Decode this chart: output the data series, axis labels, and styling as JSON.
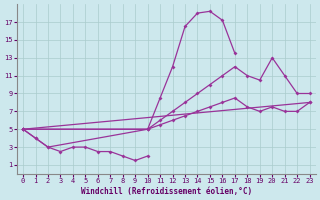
{
  "xlabel": "Windchill (Refroidissement éolien,°C)",
  "background_color": "#cde8ed",
  "grid_color": "#aacccc",
  "line_color": "#993399",
  "xlim": [
    -0.5,
    23.5
  ],
  "ylim": [
    0,
    19
  ],
  "xticks": [
    0,
    1,
    2,
    3,
    4,
    5,
    6,
    7,
    8,
    9,
    10,
    11,
    12,
    13,
    14,
    15,
    16,
    17,
    18,
    19,
    20,
    21,
    22,
    23
  ],
  "yticks": [
    1,
    3,
    5,
    7,
    9,
    11,
    13,
    15,
    17
  ],
  "series1_x": [
    0,
    1,
    2,
    3,
    4,
    5,
    6,
    7,
    8,
    9,
    10
  ],
  "series1_y": [
    5,
    4,
    3,
    2.5,
    3,
    3,
    2.5,
    2.5,
    2,
    1.5,
    2
  ],
  "series2_x": [
    0,
    1,
    2,
    10,
    11,
    12,
    13,
    14,
    15,
    16,
    17
  ],
  "series2_y": [
    5,
    4,
    3,
    5,
    8.5,
    12,
    16.5,
    18,
    18.2,
    17.2,
    13.5
  ],
  "series3_x": [
    0,
    10,
    11,
    12,
    13,
    14,
    15,
    16,
    17,
    18,
    19,
    20,
    21,
    22,
    23
  ],
  "series3_y": [
    5,
    5,
    6,
    7,
    8,
    9,
    10,
    11,
    12,
    11,
    10.5,
    13,
    11,
    9,
    9
  ],
  "series4_x": [
    0,
    23
  ],
  "series4_y": [
    5,
    8
  ],
  "series5_x": [
    0,
    10,
    11,
    12,
    13,
    14,
    15,
    16,
    17,
    18,
    19,
    20,
    21,
    22,
    23
  ],
  "series5_y": [
    5,
    5,
    5.5,
    6,
    6.5,
    7,
    7.5,
    8,
    8.5,
    7.5,
    7,
    7.5,
    7,
    7,
    8
  ]
}
